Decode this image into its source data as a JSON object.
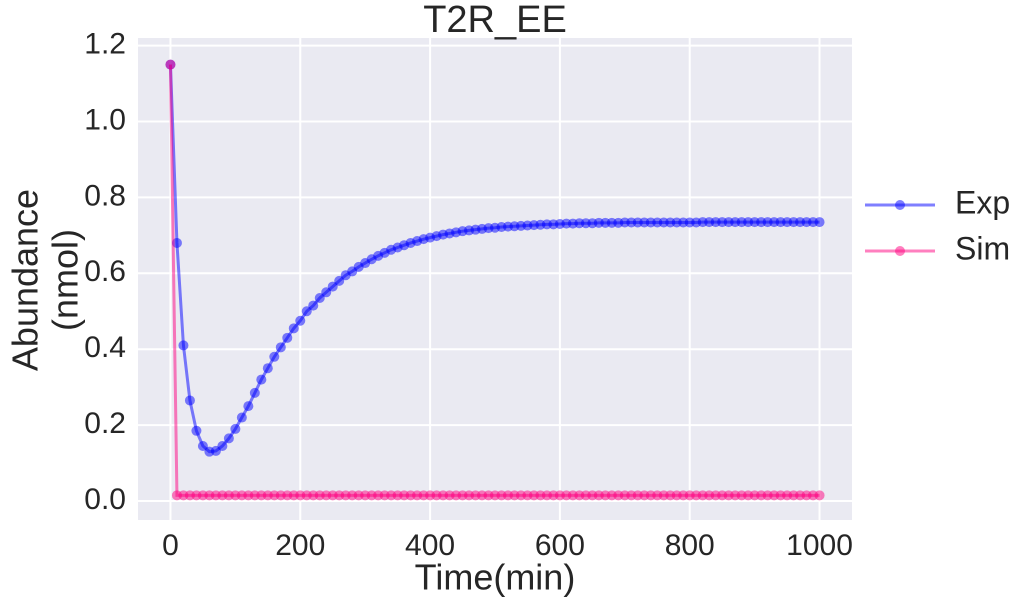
{
  "chart_data": {
    "type": "line",
    "title": "T2R_EE",
    "xlabel": "Time(min)",
    "ylabel": [
      "Abundance",
      "(nmol)"
    ],
    "x": [
      0,
      10,
      20,
      30,
      40,
      50,
      60,
      70,
      80,
      90,
      100,
      110,
      120,
      130,
      140,
      150,
      160,
      170,
      180,
      190,
      200,
      210,
      220,
      230,
      240,
      250,
      260,
      270,
      280,
      290,
      300,
      310,
      320,
      330,
      340,
      350,
      360,
      370,
      380,
      390,
      400,
      410,
      420,
      430,
      440,
      450,
      460,
      470,
      480,
      490,
      500,
      510,
      520,
      530,
      540,
      550,
      560,
      570,
      580,
      590,
      600,
      610,
      620,
      630,
      640,
      650,
      660,
      670,
      680,
      690,
      700,
      710,
      720,
      730,
      740,
      750,
      760,
      770,
      780,
      790,
      800,
      810,
      820,
      830,
      840,
      850,
      860,
      870,
      880,
      890,
      900,
      910,
      920,
      930,
      940,
      950,
      960,
      970,
      980,
      990,
      1000
    ],
    "series": [
      {
        "name": "Exp",
        "color": "#0000ff",
        "values": [
          1.15,
          0.68,
          0.41,
          0.265,
          0.185,
          0.145,
          0.13,
          0.132,
          0.145,
          0.165,
          0.19,
          0.22,
          0.25,
          0.285,
          0.32,
          0.35,
          0.38,
          0.405,
          0.43,
          0.455,
          0.475,
          0.5,
          0.515,
          0.535,
          0.55,
          0.565,
          0.58,
          0.595,
          0.605,
          0.617,
          0.627,
          0.637,
          0.646,
          0.654,
          0.662,
          0.668,
          0.674,
          0.68,
          0.685,
          0.69,
          0.694,
          0.698,
          0.702,
          0.705,
          0.708,
          0.711,
          0.713,
          0.715,
          0.717,
          0.719,
          0.72,
          0.722,
          0.723,
          0.724,
          0.725,
          0.726,
          0.727,
          0.728,
          0.729,
          0.729,
          0.73,
          0.731,
          0.731,
          0.732,
          0.732,
          0.732,
          0.733,
          0.733,
          0.733,
          0.733,
          0.734,
          0.734,
          0.734,
          0.734,
          0.734,
          0.734,
          0.734,
          0.734,
          0.734,
          0.734,
          0.734,
          0.734,
          0.735,
          0.735,
          0.735,
          0.735,
          0.735,
          0.735,
          0.735,
          0.735,
          0.735,
          0.735,
          0.735,
          0.735,
          0.735,
          0.735,
          0.735,
          0.735,
          0.735,
          0.735,
          0.735
        ]
      },
      {
        "name": "Sim",
        "color": "#ff0080",
        "values": [
          1.15,
          0.015,
          0.015,
          0.015,
          0.015,
          0.015,
          0.015,
          0.015,
          0.015,
          0.015,
          0.015,
          0.015,
          0.015,
          0.015,
          0.015,
          0.015,
          0.015,
          0.015,
          0.015,
          0.015,
          0.015,
          0.015,
          0.015,
          0.015,
          0.015,
          0.015,
          0.015,
          0.015,
          0.015,
          0.015,
          0.015,
          0.015,
          0.015,
          0.015,
          0.015,
          0.015,
          0.015,
          0.015,
          0.015,
          0.015,
          0.015,
          0.015,
          0.015,
          0.015,
          0.015,
          0.015,
          0.015,
          0.015,
          0.015,
          0.015,
          0.015,
          0.015,
          0.015,
          0.015,
          0.015,
          0.015,
          0.015,
          0.015,
          0.015,
          0.015,
          0.015,
          0.015,
          0.015,
          0.015,
          0.015,
          0.015,
          0.015,
          0.015,
          0.015,
          0.015,
          0.015,
          0.015,
          0.015,
          0.015,
          0.015,
          0.015,
          0.015,
          0.015,
          0.015,
          0.015,
          0.015,
          0.015,
          0.015,
          0.015,
          0.015,
          0.015,
          0.015,
          0.015,
          0.015,
          0.015,
          0.015,
          0.015,
          0.015,
          0.015,
          0.015,
          0.015,
          0.015,
          0.015,
          0.015,
          0.015,
          0.015
        ]
      }
    ],
    "alpha": 0.5,
    "xlim": [
      -50,
      1050
    ],
    "xticks": [
      0,
      200,
      400,
      600,
      800,
      1000
    ],
    "ylim": [
      -0.05,
      1.22
    ],
    "yticks": [
      {
        "value": 0,
        "label": "0.0"
      },
      0.2,
      0.4,
      0.6,
      0.8,
      {
        "value": 1,
        "label": "1.0"
      },
      1.2
    ],
    "grid": true,
    "legend": "right"
  }
}
